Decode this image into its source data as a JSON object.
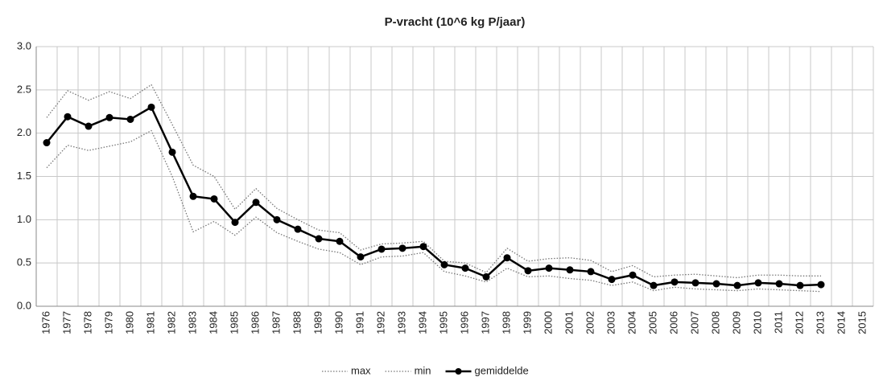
{
  "chart_data": {
    "type": "line",
    "title": "P-vracht (10^6 kg P/jaar)",
    "categories": [
      "1976",
      "1977",
      "1978",
      "1979",
      "1980",
      "1981",
      "1982",
      "1983",
      "1984",
      "1985",
      "1986",
      "1987",
      "1988",
      "1989",
      "1990",
      "1991",
      "1992",
      "1993",
      "1994",
      "1995",
      "1996",
      "1997",
      "1998",
      "1999",
      "2000",
      "2001",
      "2002",
      "2003",
      "2004",
      "2005",
      "2006",
      "2007",
      "2008",
      "2009",
      "2010",
      "2011",
      "2012",
      "2013",
      "2014",
      "2015"
    ],
    "series": [
      {
        "name": "max",
        "color": "#777777",
        "style": "dotted",
        "marker": false,
        "values": [
          2.18,
          2.49,
          2.38,
          2.48,
          2.4,
          2.56,
          2.1,
          1.63,
          1.5,
          1.12,
          1.36,
          1.13,
          1.0,
          0.88,
          0.85,
          0.65,
          0.72,
          0.73,
          0.75,
          0.52,
          0.5,
          0.39,
          0.67,
          0.52,
          0.55,
          0.56,
          0.53,
          0.4,
          0.47,
          0.34,
          0.36,
          0.37,
          0.35,
          0.33,
          0.36,
          0.36,
          0.35,
          0.35,
          null,
          null
        ]
      },
      {
        "name": "min",
        "color": "#777777",
        "style": "dotted",
        "marker": false,
        "values": [
          1.6,
          1.86,
          1.8,
          1.85,
          1.9,
          2.03,
          1.5,
          0.86,
          0.98,
          0.82,
          1.03,
          0.85,
          0.75,
          0.66,
          0.62,
          0.48,
          0.57,
          0.58,
          0.62,
          0.4,
          0.35,
          0.28,
          0.44,
          0.34,
          0.35,
          0.32,
          0.3,
          0.24,
          0.28,
          0.18,
          0.22,
          0.2,
          0.19,
          0.18,
          0.2,
          0.19,
          0.18,
          0.17,
          null,
          null
        ]
      },
      {
        "name": "gemiddelde",
        "color": "#000000",
        "style": "solid",
        "marker": true,
        "values": [
          1.89,
          2.19,
          2.08,
          2.18,
          2.16,
          2.3,
          1.78,
          1.27,
          1.24,
          0.97,
          1.2,
          1.0,
          0.89,
          0.78,
          0.75,
          0.57,
          0.66,
          0.67,
          0.69,
          0.48,
          0.44,
          0.34,
          0.56,
          0.41,
          0.44,
          0.42,
          0.4,
          0.31,
          0.36,
          0.24,
          0.28,
          0.27,
          0.26,
          0.24,
          0.27,
          0.26,
          0.24,
          0.25,
          null,
          null
        ]
      }
    ],
    "ylim": [
      0,
      3
    ],
    "yticks": [
      {
        "value": 0,
        "label": "0.0"
      },
      0.5,
      {
        "value": 1,
        "label": "1.0"
      },
      1.5,
      {
        "value": 2,
        "label": "2.0"
      },
      2.5,
      {
        "value": 3,
        "label": "3.0"
      }
    ],
    "grid": true,
    "legend": "bottom"
  }
}
